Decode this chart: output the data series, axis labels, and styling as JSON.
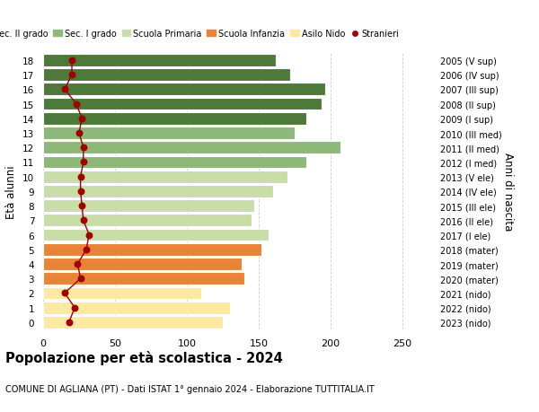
{
  "ages": [
    0,
    1,
    2,
    3,
    4,
    5,
    6,
    7,
    8,
    9,
    10,
    11,
    12,
    13,
    14,
    15,
    16,
    17,
    18
  ],
  "bar_values": [
    125,
    130,
    110,
    140,
    138,
    152,
    157,
    145,
    147,
    160,
    170,
    183,
    207,
    175,
    183,
    194,
    196,
    172,
    162
  ],
  "stranieri": [
    18,
    22,
    15,
    26,
    24,
    30,
    32,
    28,
    27,
    26,
    26,
    28,
    28,
    25,
    27,
    23,
    15,
    20,
    20
  ],
  "right_labels": [
    "2023 (nido)",
    "2022 (nido)",
    "2021 (nido)",
    "2020 (mater)",
    "2019 (mater)",
    "2018 (mater)",
    "2017 (I ele)",
    "2016 (II ele)",
    "2015 (III ele)",
    "2014 (IV ele)",
    "2013 (V ele)",
    "2012 (I med)",
    "2011 (II med)",
    "2010 (III med)",
    "2009 (I sup)",
    "2008 (II sup)",
    "2007 (III sup)",
    "2006 (IV sup)",
    "2005 (V sup)"
  ],
  "bar_colors": [
    "#fde9a2",
    "#fde9a2",
    "#fde9a2",
    "#e8833a",
    "#e8833a",
    "#e8833a",
    "#c8dda8",
    "#c8dda8",
    "#c8dda8",
    "#c8dda8",
    "#c8dda8",
    "#8db87a",
    "#8db87a",
    "#8db87a",
    "#4d7a3a",
    "#4d7a3a",
    "#4d7a3a",
    "#4d7a3a",
    "#4d7a3a"
  ],
  "legend_labels": [
    "Sec. II grado",
    "Sec. I grado",
    "Scuola Primaria",
    "Scuola Infanzia",
    "Asilo Nido",
    "Stranieri"
  ],
  "legend_colors": [
    "#4d7a3a",
    "#8db87a",
    "#c8dda8",
    "#e8833a",
    "#fde9a2",
    "#a00000"
  ],
  "ylabel": "Età alunni",
  "right_ylabel": "Anni di nascita",
  "title": "Popolazione per età scolastica - 2024",
  "subtitle": "COMUNE DI AGLIANA (PT) - Dati ISTAT 1° gennaio 2024 - Elaborazione TUTTITALIA.IT",
  "xlim": [
    0,
    270
  ],
  "background_color": "#ffffff",
  "grid_color": "#cccccc",
  "stranieri_color": "#a00000",
  "stranieri_line_color": "#a00000"
}
